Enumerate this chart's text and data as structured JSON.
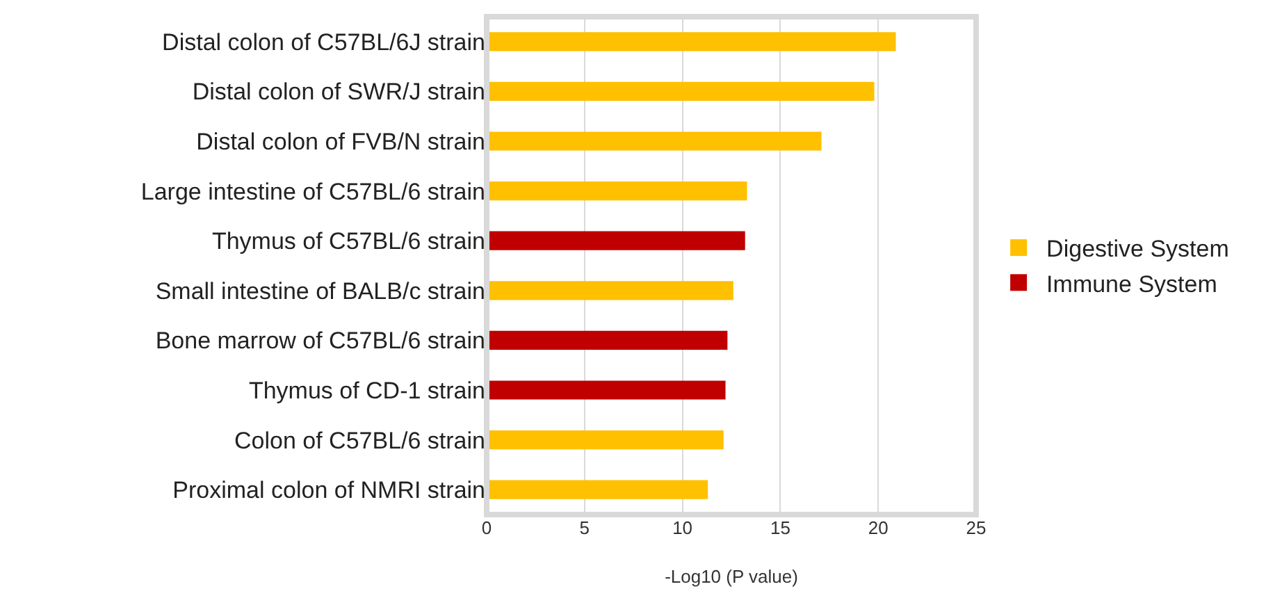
{
  "chart_data": {
    "type": "bar",
    "orientation": "horizontal",
    "categories": [
      "Distal colon of C57BL/6J strain",
      "Distal colon of SWR/J strain",
      "Distal colon of FVB/N strain",
      "Large intestine of C57BL/6 strain",
      "Thymus of C57BL/6 strain",
      "Small intestine of BALB/c strain",
      "Bone marrow of C57BL/6 strain",
      "Thymus of CD-1 strain",
      "Colon of C57BL/6 strain",
      "Proximal colon of NMRI strain"
    ],
    "series": [
      {
        "name": "Digestive System",
        "color": "#ffc000",
        "values": [
          20.9,
          19.8,
          17.1,
          13.3,
          null,
          12.6,
          null,
          null,
          12.1,
          11.3
        ]
      },
      {
        "name": "Immune System",
        "color": "#c00000",
        "values": [
          null,
          null,
          null,
          null,
          13.2,
          null,
          12.3,
          12.2,
          null,
          null
        ]
      }
    ],
    "xlabel": "-Log10 (P value)",
    "xlim": [
      0,
      25
    ],
    "xticks": [
      0,
      5,
      10,
      15,
      20,
      25
    ],
    "grid": "x",
    "legend": "right"
  }
}
